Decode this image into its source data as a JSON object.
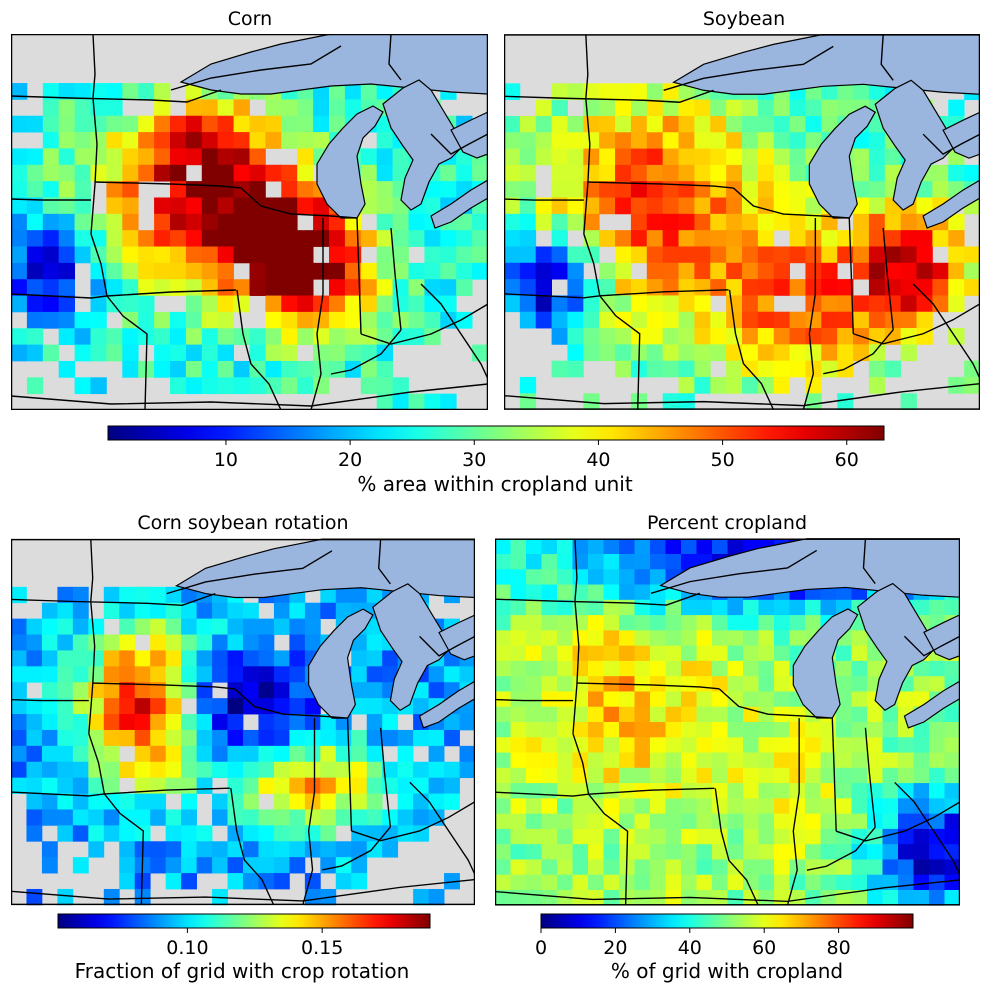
{
  "chart_data": [
    {
      "type": "heatmap",
      "title": "Corn",
      "seed": 11,
      "colorbar": {
        "label": "% area within cropland unit",
        "range": [
          0.5,
          63
        ],
        "ticks": [
          10,
          20,
          30,
          40,
          50,
          60
        ],
        "colormap": "jet"
      },
      "grid": {
        "nx": 30,
        "ny": 23,
        "cell_units": "% area within cropland unit"
      },
      "hotspots": [
        {
          "cx": 10,
          "cy": 10,
          "rx": 6,
          "ry": 5,
          "value": 52
        },
        {
          "cx": 16,
          "cy": 12,
          "rx": 4,
          "ry": 4,
          "value": 58
        },
        {
          "cx": 19,
          "cy": 14,
          "rx": 4,
          "ry": 4,
          "value": 50
        },
        {
          "cx": 12,
          "cy": 6,
          "rx": 4,
          "ry": 3,
          "value": 45
        }
      ],
      "base_value": 25,
      "cool_regions": [
        {
          "cx": 2,
          "cy": 14,
          "rx": 3,
          "ry": 3,
          "value": 5
        }
      ]
    },
    {
      "type": "heatmap",
      "title": "Soybean",
      "seed": 23,
      "colorbar": {
        "label": "% area within cropland unit",
        "range": [
          0.5,
          63
        ],
        "ticks": [
          10,
          20,
          30,
          40,
          50,
          60
        ],
        "colormap": "jet"
      },
      "grid": {
        "nx": 30,
        "ny": 23,
        "cell_units": "% area within cropland unit"
      },
      "hotspots": [
        {
          "cx": 9,
          "cy": 10,
          "rx": 7,
          "ry": 7,
          "value": 52
        },
        {
          "cx": 25,
          "cy": 14,
          "rx": 4,
          "ry": 4,
          "value": 58
        },
        {
          "cx": 18,
          "cy": 16,
          "rx": 5,
          "ry": 5,
          "value": 48
        }
      ],
      "base_value": 28,
      "cool_regions": [
        {
          "cx": 2,
          "cy": 15,
          "rx": 3,
          "ry": 3,
          "value": 5
        }
      ]
    },
    {
      "type": "heatmap",
      "title": "Corn soybean rotation",
      "seed": 37,
      "colorbar": {
        "label": "Fraction of grid with crop rotation",
        "range": [
          0.052,
          0.19
        ],
        "ticks": [
          0.1,
          0.15
        ],
        "tick_labels": [
          "0.10",
          "0.15"
        ],
        "colormap": "jet"
      },
      "grid": {
        "nx": 30,
        "ny": 23,
        "cell_units": "Fraction of grid with crop rotation"
      },
      "hotspots": [
        {
          "cx": 8,
          "cy": 10,
          "rx": 4,
          "ry": 5,
          "value": 0.175
        },
        {
          "cx": 19,
          "cy": 15,
          "rx": 5,
          "ry": 3,
          "value": 0.15
        }
      ],
      "base_value": 0.09,
      "cool_regions": [
        {
          "cx": 15,
          "cy": 10,
          "rx": 4,
          "ry": 3,
          "value": 0.06
        }
      ]
    },
    {
      "type": "heatmap",
      "title": "Percent cropland",
      "seed": 53,
      "colorbar": {
        "label": "% of grid with cropland",
        "range": [
          0,
          100
        ],
        "ticks": [
          0,
          20,
          40,
          60,
          80
        ],
        "colormap": "jet"
      },
      "grid": {
        "nx": 30,
        "ny": 24,
        "cell_units": "% of grid with cropland"
      },
      "hotspots": [
        {
          "cx": 8,
          "cy": 10,
          "rx": 6,
          "ry": 6,
          "value": 68
        },
        {
          "cx": 18,
          "cy": 15,
          "rx": 5,
          "ry": 4,
          "value": 60
        }
      ],
      "base_value": 52,
      "cool_regions": [
        {
          "cx": 18,
          "cy": 1,
          "rx": 14,
          "ry": 3,
          "value": 6
        },
        {
          "cx": 28,
          "cy": 20,
          "rx": 4,
          "ry": 4,
          "value": 6
        }
      ]
    }
  ]
}
